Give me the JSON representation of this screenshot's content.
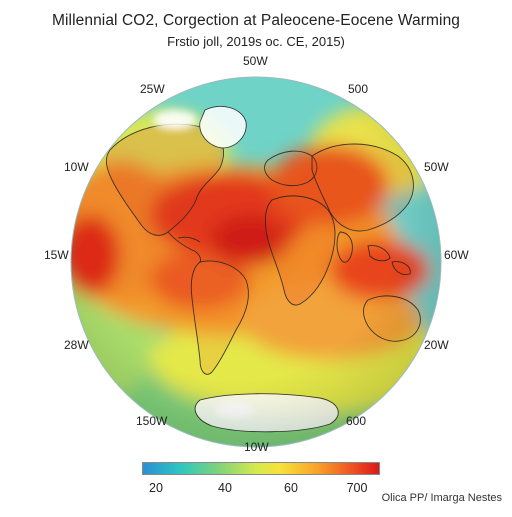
{
  "title": "Millennial CO2, Corgection at Paleocene-Eocene Warming",
  "subtitle": "Frstio joll, 2019s oc. CE, 2015)",
  "graticule_labels": {
    "top": "50W",
    "top_left": "25W",
    "top_right": "500",
    "upper_left": "10W",
    "upper_right": "50W",
    "mid_left": "15W",
    "mid_right": "60W",
    "lower_left": "28W",
    "lower_right": "20W",
    "bottom_left": "150W",
    "bottom_right": "600",
    "bottom": "10W"
  },
  "colorbar": {
    "ticks": [
      "20",
      "40",
      "60",
      "700"
    ],
    "colors": [
      "#2a8fd6",
      "#2ec7c0",
      "#7fd37a",
      "#d6e94e",
      "#f7e23a",
      "#f7a12a",
      "#ee4a22",
      "#d61a1a"
    ]
  },
  "credit": "Olica PP/ Imarga Nestes",
  "colors": {
    "ocean_base": "#6fd3c8",
    "warm": "#e8401c",
    "hot": "#d21d15",
    "coast": "#222222",
    "ice": "#ffffff"
  }
}
